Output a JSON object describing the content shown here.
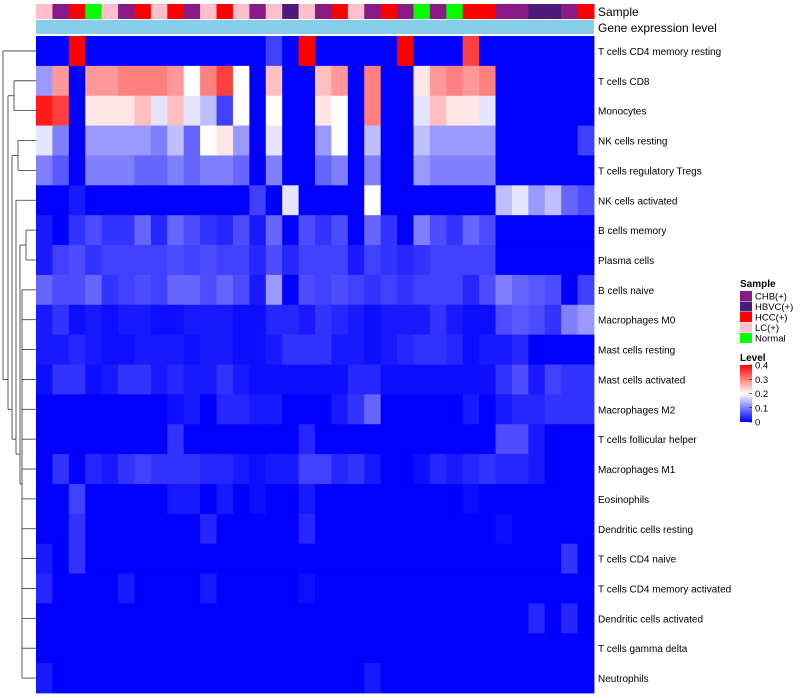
{
  "chart_data": {
    "type": "heatmap",
    "annotation_labels": [
      "Sample",
      "Gene expression level"
    ],
    "sample_categories": [
      "CHB(+)",
      "HBVC(+)",
      "HCC(+)",
      "LC(+)",
      "Normal"
    ],
    "sample_colors": {
      "CHB(+)": "#8b1a89",
      "HBVC(+)": "#4b1a7a",
      "HCC(+)": "#ff0000",
      "LC(+)": "#ffc0cb",
      "Normal": "#00ff00"
    },
    "samples": [
      "LC(+)",
      "CHB(+)",
      "HCC(+)",
      "Normal",
      "LC(+)",
      "CHB(+)",
      "HCC(+)",
      "LC(+)",
      "HCC(+)",
      "CHB(+)",
      "LC(+)",
      "HCC(+)",
      "LC(+)",
      "CHB(+)",
      "LC(+)",
      "HBVC(+)",
      "LC(+)",
      "CHB(+)",
      "HCC(+)",
      "LC(+)",
      "CHB(+)",
      "HCC(+)",
      "CHB(+)",
      "Normal",
      "CHB(+)",
      "Normal",
      "HCC(+)",
      "HCC(+)",
      "CHB(+)",
      "CHB(+)",
      "HBVC(+)",
      "HBVC(+)",
      "CHB(+)",
      "HCC(+)"
    ],
    "gene_expression_level_color": "#87ceeb",
    "rows": [
      "T cells CD4 memory resting",
      "T cells CD8",
      "Monocytes",
      "NK cells resting",
      "T cells regulatory  Tregs",
      "NK cells activated",
      "B cells memory",
      "Plasma cells",
      "B cells naive",
      "Macrophages M0",
      "Mast cells resting",
      "Mast cells activated",
      "Macrophages M2",
      "T cells follicular helper",
      "Macrophages M1",
      "Eosinophils",
      "Dendritic cells resting",
      "T cells CD4 naive",
      "T cells CD4 memory activated",
      "Dendritic cells activated",
      "T cells gamma delta",
      "Neutrophils"
    ],
    "values": [
      [
        0.0,
        0.0,
        0.4,
        0.0,
        0.0,
        0.0,
        0.0,
        0.0,
        0.0,
        0.0,
        0.0,
        0.0,
        0.0,
        0.0,
        0.05,
        0.0,
        0.4,
        0.0,
        0.0,
        0.0,
        0.0,
        0.0,
        0.4,
        0.0,
        0.0,
        0.0,
        0.35,
        0.0,
        0.0,
        0.0,
        0.0,
        0.0,
        0.0,
        0.0
      ],
      [
        0.12,
        0.28,
        0.0,
        0.28,
        0.28,
        0.3,
        0.3,
        0.3,
        0.28,
        0.2,
        0.3,
        0.35,
        0.2,
        0.0,
        0.25,
        0.0,
        0.0,
        0.25,
        0.28,
        0.0,
        0.3,
        0.0,
        0.0,
        0.22,
        0.28,
        0.3,
        0.28,
        0.3,
        0.0,
        0.0,
        0.0,
        0.0,
        0.0,
        0.0
      ],
      [
        0.38,
        0.35,
        0.0,
        0.22,
        0.22,
        0.22,
        0.25,
        0.18,
        0.25,
        0.18,
        0.15,
        0.05,
        0.2,
        0.0,
        0.2,
        0.0,
        0.0,
        0.22,
        0.2,
        0.0,
        0.3,
        0.0,
        0.0,
        0.18,
        0.25,
        0.22,
        0.22,
        0.18,
        0.0,
        0.0,
        0.0,
        0.0,
        0.0,
        0.0
      ],
      [
        0.18,
        0.1,
        0.0,
        0.12,
        0.12,
        0.12,
        0.12,
        0.1,
        0.15,
        0.08,
        0.2,
        0.22,
        0.12,
        0.0,
        0.18,
        0.0,
        0.0,
        0.12,
        0.2,
        0.0,
        0.15,
        0.0,
        0.0,
        0.15,
        0.12,
        0.12,
        0.12,
        0.12,
        0.0,
        0.0,
        0.0,
        0.0,
        0.0,
        0.05
      ],
      [
        0.1,
        0.07,
        0.0,
        0.1,
        0.1,
        0.1,
        0.08,
        0.08,
        0.1,
        0.08,
        0.1,
        0.1,
        0.08,
        0.0,
        0.1,
        0.0,
        0.0,
        0.08,
        0.1,
        0.0,
        0.1,
        0.0,
        0.0,
        0.12,
        0.1,
        0.1,
        0.1,
        0.1,
        0.0,
        0.0,
        0.0,
        0.0,
        0.0,
        0.0
      ],
      [
        0.0,
        0.0,
        0.02,
        0.0,
        0.0,
        0.0,
        0.0,
        0.0,
        0.0,
        0.0,
        0.0,
        0.0,
        0.0,
        0.05,
        0.0,
        0.18,
        0.0,
        0.0,
        0.0,
        0.0,
        0.2,
        0.0,
        0.0,
        0.0,
        0.0,
        0.0,
        0.0,
        0.0,
        0.15,
        0.18,
        0.12,
        0.15,
        0.08,
        0.06
      ],
      [
        0.02,
        0.0,
        0.04,
        0.06,
        0.04,
        0.04,
        0.08,
        0.03,
        0.08,
        0.06,
        0.04,
        0.03,
        0.06,
        0.02,
        0.08,
        0.0,
        0.06,
        0.04,
        0.06,
        0.0,
        0.08,
        0.04,
        0.0,
        0.1,
        0.06,
        0.04,
        0.08,
        0.06,
        0.0,
        0.0,
        0.0,
        0.0,
        0.0,
        0.0
      ],
      [
        0.02,
        0.05,
        0.06,
        0.04,
        0.05,
        0.05,
        0.05,
        0.05,
        0.06,
        0.05,
        0.06,
        0.05,
        0.05,
        0.03,
        0.06,
        0.03,
        0.05,
        0.05,
        0.05,
        0.02,
        0.05,
        0.04,
        0.03,
        0.04,
        0.05,
        0.05,
        0.05,
        0.05,
        0.0,
        0.0,
        0.0,
        0.0,
        0.0,
        0.0
      ],
      [
        0.08,
        0.06,
        0.06,
        0.08,
        0.04,
        0.05,
        0.06,
        0.05,
        0.08,
        0.08,
        0.06,
        0.08,
        0.06,
        0.02,
        0.12,
        0.0,
        0.06,
        0.05,
        0.06,
        0.05,
        0.04,
        0.05,
        0.04,
        0.05,
        0.05,
        0.05,
        0.03,
        0.06,
        0.1,
        0.08,
        0.07,
        0.06,
        0.0,
        0.05
      ],
      [
        0.02,
        0.04,
        0.01,
        0.02,
        0.01,
        0.02,
        0.02,
        0.01,
        0.01,
        0.02,
        0.02,
        0.02,
        0.01,
        0.01,
        0.03,
        0.03,
        0.02,
        0.04,
        0.03,
        0.02,
        0.01,
        0.02,
        0.02,
        0.02,
        0.04,
        0.02,
        0.01,
        0.01,
        0.06,
        0.07,
        0.06,
        0.04,
        0.1,
        0.12
      ],
      [
        0.02,
        0.02,
        0.03,
        0.02,
        0.01,
        0.01,
        0.02,
        0.02,
        0.02,
        0.01,
        0.02,
        0.02,
        0.01,
        0.01,
        0.02,
        0.04,
        0.04,
        0.04,
        0.02,
        0.02,
        0.01,
        0.02,
        0.03,
        0.04,
        0.04,
        0.03,
        0.01,
        0.02,
        0.02,
        0.03,
        0.0,
        0.0,
        0.0,
        0.0
      ],
      [
        0.01,
        0.04,
        0.04,
        0.01,
        0.02,
        0.04,
        0.04,
        0.02,
        0.03,
        0.02,
        0.02,
        0.04,
        0.02,
        0.01,
        0.01,
        0.01,
        0.01,
        0.01,
        0.01,
        0.03,
        0.03,
        0.01,
        0.01,
        0.01,
        0.01,
        0.01,
        0.01,
        0.01,
        0.04,
        0.06,
        0.02,
        0.05,
        0.04,
        0.04
      ],
      [
        0.0,
        0.0,
        0.0,
        0.0,
        0.0,
        0.0,
        0.0,
        0.0,
        0.01,
        0.02,
        0.0,
        0.03,
        0.03,
        0.02,
        0.02,
        0.0,
        0.0,
        0.0,
        0.02,
        0.04,
        0.08,
        0.0,
        0.0,
        0.0,
        0.0,
        0.0,
        0.02,
        0.0,
        0.02,
        0.03,
        0.03,
        0.04,
        0.04,
        0.04
      ],
      [
        0.0,
        0.0,
        0.0,
        0.0,
        0.0,
        0.0,
        0.0,
        0.0,
        0.04,
        0.0,
        0.0,
        0.0,
        0.0,
        0.0,
        0.0,
        0.0,
        0.03,
        0.0,
        0.0,
        0.0,
        0.0,
        0.0,
        0.0,
        0.0,
        0.0,
        0.0,
        0.0,
        0.0,
        0.06,
        0.06,
        0.02,
        0.0,
        0.0,
        0.0
      ],
      [
        0.0,
        0.04,
        0.0,
        0.03,
        0.02,
        0.04,
        0.05,
        0.04,
        0.04,
        0.04,
        0.03,
        0.03,
        0.02,
        0.01,
        0.02,
        0.02,
        0.05,
        0.05,
        0.03,
        0.04,
        0.02,
        0.0,
        0.0,
        0.01,
        0.03,
        0.02,
        0.03,
        0.04,
        0.03,
        0.03,
        0.02,
        0.0,
        0.0,
        0.0
      ],
      [
        0.0,
        0.0,
        0.05,
        0.0,
        0.0,
        0.0,
        0.0,
        0.0,
        0.02,
        0.02,
        0.0,
        0.02,
        0.0,
        0.01,
        0.0,
        0.0,
        0.02,
        0.0,
        0.0,
        0.0,
        0.0,
        0.0,
        0.0,
        0.0,
        0.0,
        0.0,
        0.01,
        0.0,
        0.0,
        0.0,
        0.0,
        0.0,
        0.0,
        0.0
      ],
      [
        0.0,
        0.0,
        0.04,
        0.0,
        0.0,
        0.0,
        0.0,
        0.0,
        0.0,
        0.0,
        0.03,
        0.0,
        0.0,
        0.0,
        0.0,
        0.0,
        0.03,
        0.0,
        0.0,
        0.0,
        0.0,
        0.0,
        0.0,
        0.0,
        0.0,
        0.0,
        0.0,
        0.0,
        0.01,
        0.0,
        0.0,
        0.0,
        0.0,
        0.0
      ],
      [
        0.02,
        0.0,
        0.04,
        0.0,
        0.0,
        0.0,
        0.0,
        0.0,
        0.0,
        0.0,
        0.0,
        0.0,
        0.0,
        0.0,
        0.0,
        0.0,
        0.0,
        0.0,
        0.0,
        0.0,
        0.0,
        0.0,
        0.0,
        0.0,
        0.0,
        0.0,
        0.0,
        0.0,
        0.0,
        0.0,
        0.0,
        0.0,
        0.04,
        0.0
      ],
      [
        0.03,
        0.0,
        0.0,
        0.0,
        0.0,
        0.02,
        0.0,
        0.0,
        0.0,
        0.0,
        0.02,
        0.0,
        0.0,
        0.0,
        0.0,
        0.0,
        0.01,
        0.0,
        0.0,
        0.0,
        0.0,
        0.0,
        0.0,
        0.0,
        0.0,
        0.0,
        0.0,
        0.0,
        0.0,
        0.0,
        0.0,
        0.0,
        0.0,
        0.0
      ],
      [
        0.0,
        0.0,
        0.0,
        0.0,
        0.0,
        0.0,
        0.0,
        0.0,
        0.0,
        0.0,
        0.0,
        0.0,
        0.0,
        0.0,
        0.0,
        0.0,
        0.0,
        0.0,
        0.0,
        0.0,
        0.0,
        0.0,
        0.0,
        0.0,
        0.0,
        0.0,
        0.0,
        0.0,
        0.0,
        0.0,
        0.03,
        0.0,
        0.03,
        0.0
      ],
      [
        0.0,
        0.0,
        0.0,
        0.0,
        0.0,
        0.0,
        0.0,
        0.0,
        0.0,
        0.0,
        0.0,
        0.0,
        0.0,
        0.0,
        0.0,
        0.0,
        0.0,
        0.0,
        0.0,
        0.0,
        0.0,
        0.0,
        0.0,
        0.0,
        0.0,
        0.0,
        0.0,
        0.0,
        0.0,
        0.0,
        0.0,
        0.0,
        0.0,
        0.0
      ],
      [
        0.02,
        0.0,
        0.0,
        0.0,
        0.0,
        0.0,
        0.0,
        0.0,
        0.0,
        0.0,
        0.0,
        0.0,
        0.0,
        0.0,
        0.0,
        0.0,
        0.0,
        0.0,
        0.0,
        0.0,
        0.02,
        0.0,
        0.0,
        0.0,
        0.0,
        0.0,
        0.0,
        0.0,
        0.0,
        0.0,
        0.0,
        0.0,
        0.0,
        0.0
      ]
    ],
    "color_scale": {
      "min": 0,
      "max": 0.4,
      "colors": [
        "#0000ff",
        "#ffffff",
        "#ff0000"
      ]
    },
    "legend": {
      "sample_title": "Sample",
      "level_title": "Level",
      "level_ticks": [
        "0.4",
        "0.3",
        "0.2",
        "0.1",
        "0"
      ],
      "level_tick_values": [
        0.4,
        0.3,
        0.2,
        0.1,
        0
      ]
    }
  }
}
